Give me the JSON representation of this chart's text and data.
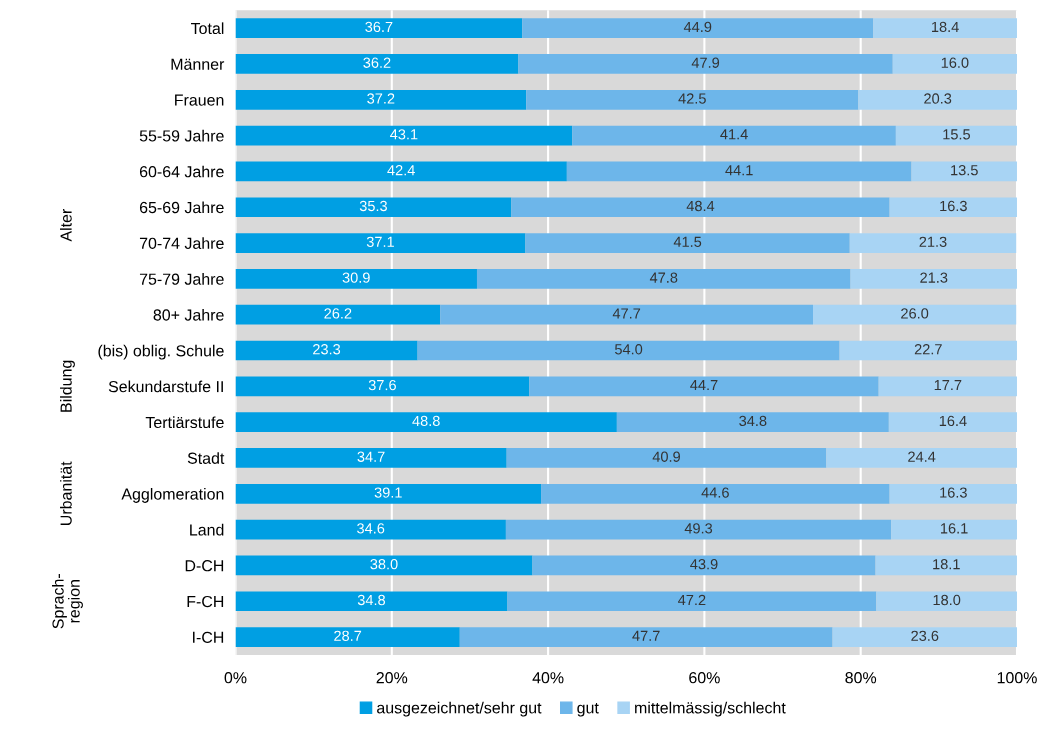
{
  "chart_data": {
    "type": "bar",
    "orientation": "horizontal",
    "stacked": true,
    "categories": [
      "Total",
      "Männer",
      "Frauen",
      "55-59 Jahre",
      "60-64 Jahre",
      "65-69 Jahre",
      "70-74 Jahre",
      "75-79 Jahre",
      "80+ Jahre",
      "(bis) oblig. Schule",
      "Sekundarstufe II",
      "Tertiärstufe",
      "Stadt",
      "Agglomeration",
      "Land",
      "D-CH",
      "F-CH",
      "I-CH"
    ],
    "series": [
      {
        "name": "ausgezeichnet/sehr gut",
        "color": "#009fe3",
        "values": [
          36.7,
          36.2,
          37.2,
          43.1,
          42.4,
          35.3,
          37.1,
          30.9,
          26.2,
          23.3,
          37.6,
          48.8,
          34.7,
          39.1,
          34.6,
          38.0,
          34.8,
          28.7
        ],
        "value_labels": [
          "36.7",
          "36.2",
          "37.2",
          "43.1",
          "42.4",
          "35.3",
          "37.1",
          "30.9",
          "26.2",
          "23.3",
          "37.6",
          "48.8",
          "34.7",
          "39.1",
          "34.6",
          "38.0",
          "34.8",
          "28.7"
        ]
      },
      {
        "name": "gut",
        "color": "#6db6ea",
        "values": [
          44.9,
          47.9,
          42.5,
          41.4,
          44.1,
          48.4,
          41.5,
          47.8,
          47.7,
          54.0,
          44.7,
          34.8,
          40.9,
          44.6,
          49.3,
          43.9,
          47.2,
          47.7
        ],
        "value_labels": [
          "44.9",
          "47.9",
          "42.5",
          "41.4",
          "44.1",
          "48.4",
          "41.5",
          "47.8",
          "47.7",
          "54.0",
          "44.7",
          "34.8",
          "40.9",
          "44.6",
          "49.3",
          "43.9",
          "47.2",
          "47.7"
        ]
      },
      {
        "name": "mittelmässig/schlecht",
        "color": "#a8d4f4",
        "values": [
          18.4,
          16.0,
          20.3,
          15.5,
          13.5,
          16.3,
          21.3,
          21.3,
          26.0,
          22.7,
          17.7,
          16.4,
          24.4,
          16.3,
          16.1,
          18.1,
          18.0,
          23.6
        ],
        "value_labels": [
          "18.4",
          "16.0",
          "20.3",
          "15.5",
          "13.5",
          "16.3",
          "21.3",
          "21.3",
          "26.0",
          "22.7",
          "17.7",
          "16.4",
          "24.4",
          "16.3",
          "16.1",
          "18.1",
          "18.0",
          "23.6"
        ]
      }
    ],
    "xlim": [
      0,
      100
    ],
    "xticks": [
      {
        "value": 0,
        "label": "0%"
      },
      {
        "value": 20,
        "label": "20%"
      },
      {
        "value": 40,
        "label": "40%"
      },
      {
        "value": 60,
        "label": "60%"
      },
      {
        "value": 80,
        "label": "80%"
      },
      {
        "value": 100,
        "label": "100%"
      }
    ],
    "grid": "x",
    "legend": "bottom",
    "annotations": [
      "Alter",
      "Bildung",
      "Urbanität",
      "Sprach-\nregion"
    ]
  }
}
